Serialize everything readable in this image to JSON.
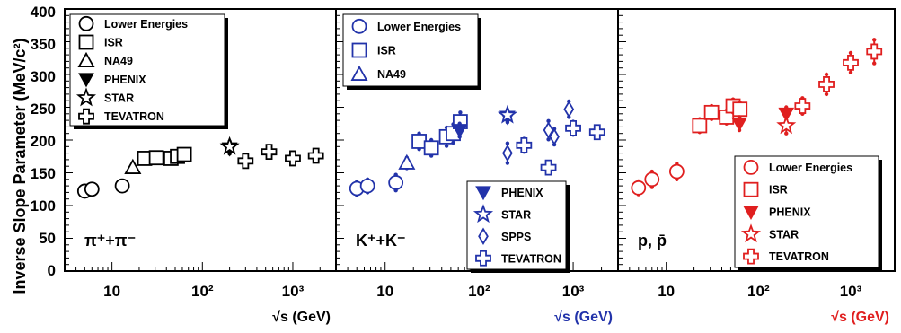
{
  "figure": {
    "ylabel": "Inverse Slope Parameter (MeV/c²)",
    "y_ticks": [
      "0",
      "50",
      "100",
      "150",
      "200",
      "250",
      "300",
      "350",
      "400"
    ]
  },
  "chart_data": [
    {
      "type": "scatter",
      "panel_label": "π⁺+π⁻",
      "color": "#000000",
      "xlabel": "√s (GeV)",
      "x_scale": "log",
      "xlim": [
        3,
        3000
      ],
      "ylim": [
        0,
        400
      ],
      "x_tick_labels": [
        "10",
        "10²",
        "10³"
      ],
      "legend": {
        "position": "top-left"
      },
      "series": [
        {
          "name": "Lower Energies",
          "marker": "circle-open",
          "points": [
            {
              "x": 5.0,
              "y": 122,
              "err": 8
            },
            {
              "x": 6.0,
              "y": 125,
              "err": 8
            },
            {
              "x": 13.0,
              "y": 130,
              "err": 8
            }
          ]
        },
        {
          "name": "ISR",
          "marker": "square-open",
          "points": [
            {
              "x": 23,
              "y": 172,
              "err": 8
            },
            {
              "x": 31,
              "y": 173,
              "err": 8
            },
            {
              "x": 45,
              "y": 172,
              "err": 8
            },
            {
              "x": 53,
              "y": 175,
              "err": 8
            },
            {
              "x": 63,
              "y": 178,
              "err": 8
            }
          ]
        },
        {
          "name": "NA49",
          "marker": "triangle-open",
          "points": [
            {
              "x": 17,
              "y": 158,
              "err": 5
            }
          ]
        },
        {
          "name": "PHENIX",
          "marker": "triangle-down-filled",
          "points": [
            {
              "x": 200,
              "y": 187,
              "err": 8
            }
          ]
        },
        {
          "name": "STAR",
          "marker": "star-open",
          "points": [
            {
              "x": 200,
              "y": 190,
              "err": 8
            }
          ]
        },
        {
          "name": "TEVATRON",
          "marker": "cross-open",
          "points": [
            {
              "x": 300,
              "y": 168,
              "err": 8
            },
            {
              "x": 546,
              "y": 182,
              "err": 8
            },
            {
              "x": 1000,
              "y": 172,
              "err": 8
            },
            {
              "x": 1800,
              "y": 176,
              "err": 8
            }
          ]
        }
      ]
    },
    {
      "type": "scatter",
      "panel_label": "K⁺+K⁻",
      "color": "#2233aa",
      "xlabel": "√s (GeV)",
      "x_scale": "log",
      "xlim": [
        3,
        3000
      ],
      "ylim": [
        0,
        400
      ],
      "x_tick_labels": [
        "10",
        "10²",
        "10³"
      ],
      "legends": [
        {
          "position": "top-left",
          "entries": [
            "Lower Energies",
            "ISR",
            "NA49"
          ]
        },
        {
          "position": "bottom-right",
          "entries": [
            "PHENIX",
            "STAR",
            "SPPS",
            "TEVATRON"
          ]
        }
      ],
      "series": [
        {
          "name": "Lower Energies",
          "marker": "circle-open",
          "points": [
            {
              "x": 5.0,
              "y": 126,
              "err": 10
            },
            {
              "x": 6.5,
              "y": 130,
              "err": 10
            },
            {
              "x": 13.0,
              "y": 135,
              "err": 12
            }
          ]
        },
        {
          "name": "ISR",
          "marker": "square-open",
          "points": [
            {
              "x": 23,
              "y": 198,
              "err": 12
            },
            {
              "x": 31,
              "y": 188,
              "err": 12
            },
            {
              "x": 45,
              "y": 205,
              "err": 14
            },
            {
              "x": 53,
              "y": 210,
              "err": 14
            },
            {
              "x": 63,
              "y": 228,
              "err": 14
            }
          ]
        },
        {
          "name": "NA49",
          "marker": "triangle-open",
          "points": [
            {
              "x": 17,
              "y": 165,
              "err": 8
            }
          ]
        },
        {
          "name": "PHENIX",
          "marker": "triangle-down-filled",
          "points": [
            {
              "x": 62,
              "y": 215,
              "err": 10
            },
            {
              "x": 200,
              "y": 235,
              "err": 8
            }
          ]
        },
        {
          "name": "STAR",
          "marker": "star-open",
          "points": [
            {
              "x": 200,
              "y": 238,
              "err": 8
            }
          ]
        },
        {
          "name": "SPPS",
          "marker": "diamond-open",
          "points": [
            {
              "x": 200,
              "y": 180,
              "err": 15
            },
            {
              "x": 546,
              "y": 215,
              "err": 14
            },
            {
              "x": 630,
              "y": 205,
              "err": 12
            },
            {
              "x": 900,
              "y": 247,
              "err": 12
            }
          ]
        },
        {
          "name": "TEVATRON",
          "marker": "cross-open",
          "points": [
            {
              "x": 300,
              "y": 192,
              "err": 10
            },
            {
              "x": 546,
              "y": 158,
              "err": 6
            },
            {
              "x": 1000,
              "y": 218,
              "err": 10
            },
            {
              "x": 1800,
              "y": 212,
              "err": 8
            }
          ]
        }
      ]
    },
    {
      "type": "scatter",
      "panel_label": "p, p̄",
      "color": "#e01f1f",
      "xlabel": "√s (GeV)",
      "x_scale": "log",
      "xlim": [
        3,
        3000
      ],
      "ylim": [
        0,
        400
      ],
      "x_tick_labels": [
        "10",
        "10²",
        "10³"
      ],
      "legend": {
        "position": "bottom-right"
      },
      "series": [
        {
          "name": "Lower Energies",
          "marker": "circle-open",
          "points": [
            {
              "x": 5.0,
              "y": 127,
              "err": 10
            },
            {
              "x": 7.0,
              "y": 140,
              "err": 12
            },
            {
              "x": 13.0,
              "y": 152,
              "err": 12
            }
          ]
        },
        {
          "name": "ISR",
          "marker": "square-open",
          "points": [
            {
              "x": 23,
              "y": 222,
              "err": 10
            },
            {
              "x": 31,
              "y": 242,
              "err": 10
            },
            {
              "x": 45,
              "y": 235,
              "err": 10
            },
            {
              "x": 53,
              "y": 252,
              "err": 10
            },
            {
              "x": 63,
              "y": 247,
              "err": 10
            }
          ]
        },
        {
          "name": "PHENIX",
          "marker": "triangle-down-filled",
          "points": [
            {
              "x": 62,
              "y": 225,
              "err": 10
            },
            {
              "x": 200,
              "y": 240,
              "err": 10
            }
          ]
        },
        {
          "name": "STAR",
          "marker": "star-open",
          "points": [
            {
              "x": 200,
              "y": 222,
              "err": 12
            }
          ]
        },
        {
          "name": "TEVATRON",
          "marker": "cross-open",
          "points": [
            {
              "x": 300,
              "y": 252,
              "err": 12
            },
            {
              "x": 546,
              "y": 285,
              "err": 15
            },
            {
              "x": 1000,
              "y": 318,
              "err": 15
            },
            {
              "x": 1800,
              "y": 335,
              "err": 18
            }
          ]
        }
      ]
    }
  ]
}
